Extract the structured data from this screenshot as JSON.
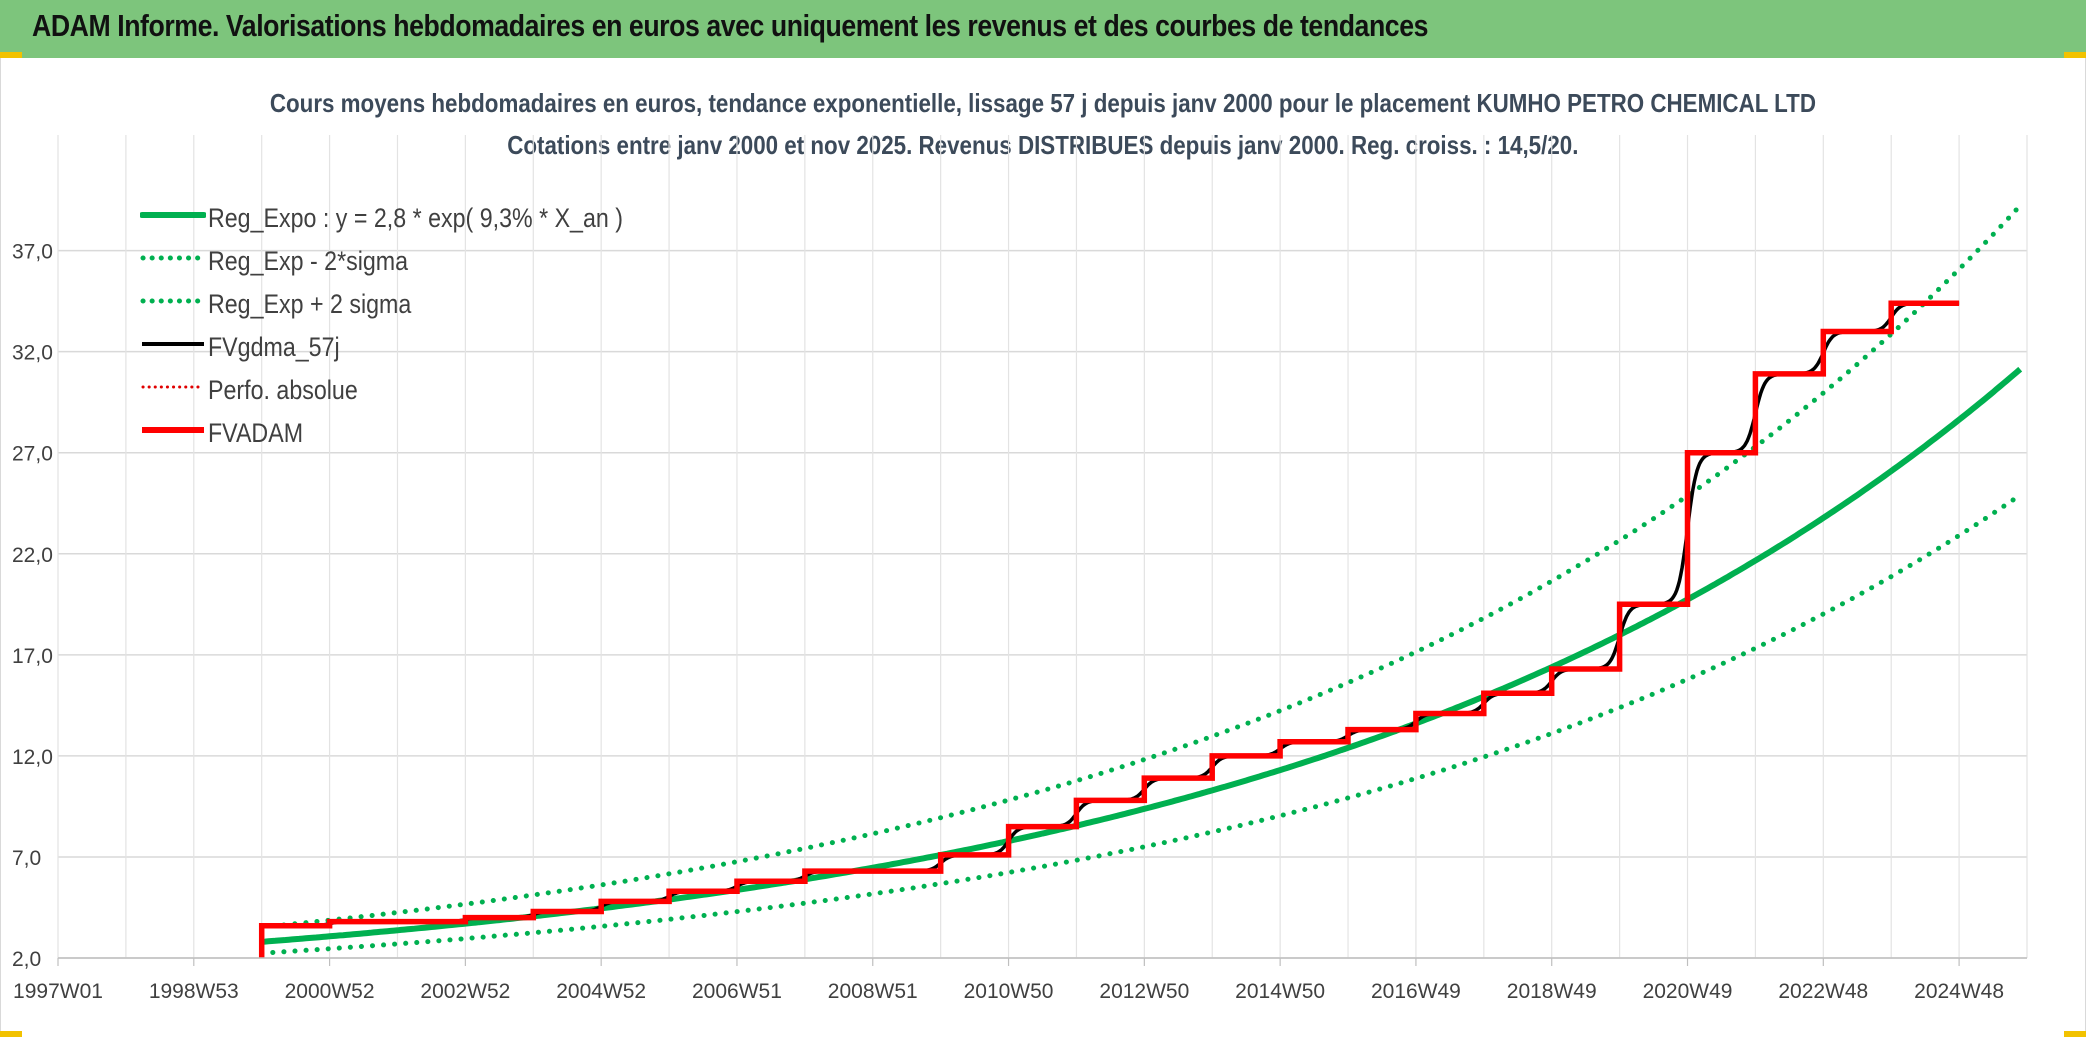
{
  "header": {
    "title": "ADAM Informe. Valorisations hebdomadaires en euros avec uniquement les revenus et des courbes de tendances"
  },
  "chart_data": {
    "type": "line",
    "title_line1": "Cours moyens hebdomadaires en euros, tendance exponentielle, lissage 57 j depuis janv 2000 pour le placement KUMHO PETRO CHEMICAL LTD",
    "title_line2": "Cotations entre janv 2000 et nov 2025. Revenus DISTRIBUES depuis janv 2000. Reg. croiss. : 14,5/20.",
    "x_ticks": [
      "1997W01",
      "1998W53",
      "2000W52",
      "2002W52",
      "2004W52",
      "2006W51",
      "2008W51",
      "2010W50",
      "2012W50",
      "2014W50",
      "2016W49",
      "2018W49",
      "2020W49",
      "2022W48",
      "2024W48"
    ],
    "x_range": [
      1997.0,
      2026.0
    ],
    "y_ticks": [
      "2,0",
      "7,0",
      "12,0",
      "17,0",
      "22,0",
      "27,0",
      "32,0",
      "37,0"
    ],
    "ylim": [
      2.0,
      40.0
    ],
    "grid": true,
    "legend_position": "top-left",
    "regression": {
      "a": 2.8,
      "rate": 0.093,
      "x0": 2000.0,
      "x1": 2025.9,
      "sigma_factor_low": 0.8,
      "sigma_factor_high": 1.26
    },
    "series": [
      {
        "name": "Reg_Expo : y = 2,8 * exp( 9,3% *  X_an )",
        "color": "#00b050",
        "style": "solid-thick"
      },
      {
        "name": "Reg_Exp - 2*sigma",
        "color": "#00b050",
        "style": "dotted"
      },
      {
        "name": "Reg_Exp + 2 sigma",
        "color": "#00b050",
        "style": "dotted"
      },
      {
        "name": "FVgdma_57j",
        "color": "#000000",
        "style": "solid"
      },
      {
        "name": "Perfo. absolue",
        "color": "#e00000",
        "style": "dotted-thin"
      },
      {
        "name": "FVADAM",
        "color": "#ff0000",
        "style": "solid-thick",
        "steps": [
          {
            "x": 2000.0,
            "y": 3.6
          },
          {
            "x": 2001.0,
            "y": 3.8
          },
          {
            "x": 2003.0,
            "y": 4.0
          },
          {
            "x": 2004.0,
            "y": 4.3
          },
          {
            "x": 2005.0,
            "y": 4.8
          },
          {
            "x": 2006.0,
            "y": 5.3
          },
          {
            "x": 2007.0,
            "y": 5.8
          },
          {
            "x": 2008.0,
            "y": 6.3
          },
          {
            "x": 2010.0,
            "y": 7.1
          },
          {
            "x": 2011.0,
            "y": 8.5
          },
          {
            "x": 2012.0,
            "y": 9.8
          },
          {
            "x": 2013.0,
            "y": 10.9
          },
          {
            "x": 2014.0,
            "y": 12.0
          },
          {
            "x": 2015.0,
            "y": 12.7
          },
          {
            "x": 2016.0,
            "y": 13.3
          },
          {
            "x": 2017.0,
            "y": 14.1
          },
          {
            "x": 2018.0,
            "y": 15.1
          },
          {
            "x": 2019.0,
            "y": 16.3
          },
          {
            "x": 2020.0,
            "y": 19.5
          },
          {
            "x": 2021.0,
            "y": 27.0
          },
          {
            "x": 2022.0,
            "y": 30.9
          },
          {
            "x": 2023.0,
            "y": 33.0
          },
          {
            "x": 2024.0,
            "y": 34.4
          }
        ],
        "end_x": 2025.0
      }
    ]
  }
}
